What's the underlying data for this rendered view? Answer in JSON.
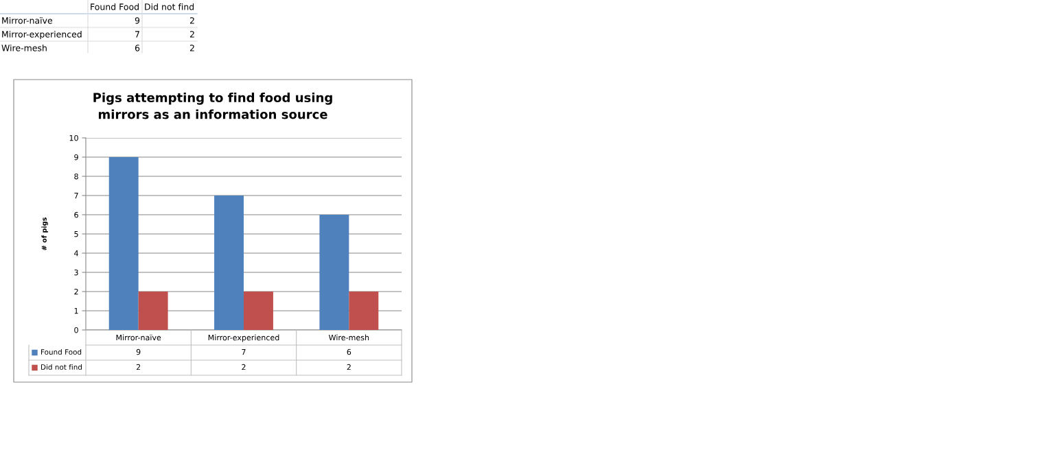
{
  "chart_data": [
    {
      "type": "other",
      "categories": [
        "Mirror-naïve",
        "Mirror-experienced",
        "Wire-mesh"
      ],
      "series": [
        {
          "name": "Found Food",
          "values": [
            9,
            7,
            6
          ]
        },
        {
          "name": "Did not find",
          "values": [
            2,
            2,
            2
          ]
        }
      ],
      "data_labels": true
    },
    {
      "type": "bar",
      "title": "Pigs attempting to find food using\nmirrors as an information source",
      "ylabel": "# of pigs",
      "categories": [
        "Mirror-naïve",
        "Mirror-experienced",
        "Wire-mesh"
      ],
      "series": [
        {
          "name": "Found Food",
          "color": "#4f81bd",
          "values": [
            9,
            7,
            6
          ]
        },
        {
          "name": "Did not find",
          "color": "#c0504d",
          "values": [
            2,
            2,
            2
          ]
        }
      ],
      "ylim": [
        0,
        10
      ],
      "yticks": [
        0,
        1,
        2,
        3,
        4,
        5,
        6,
        7,
        8,
        9,
        10
      ],
      "grid": "y",
      "legend": "bottom",
      "data_labels": true
    }
  ]
}
